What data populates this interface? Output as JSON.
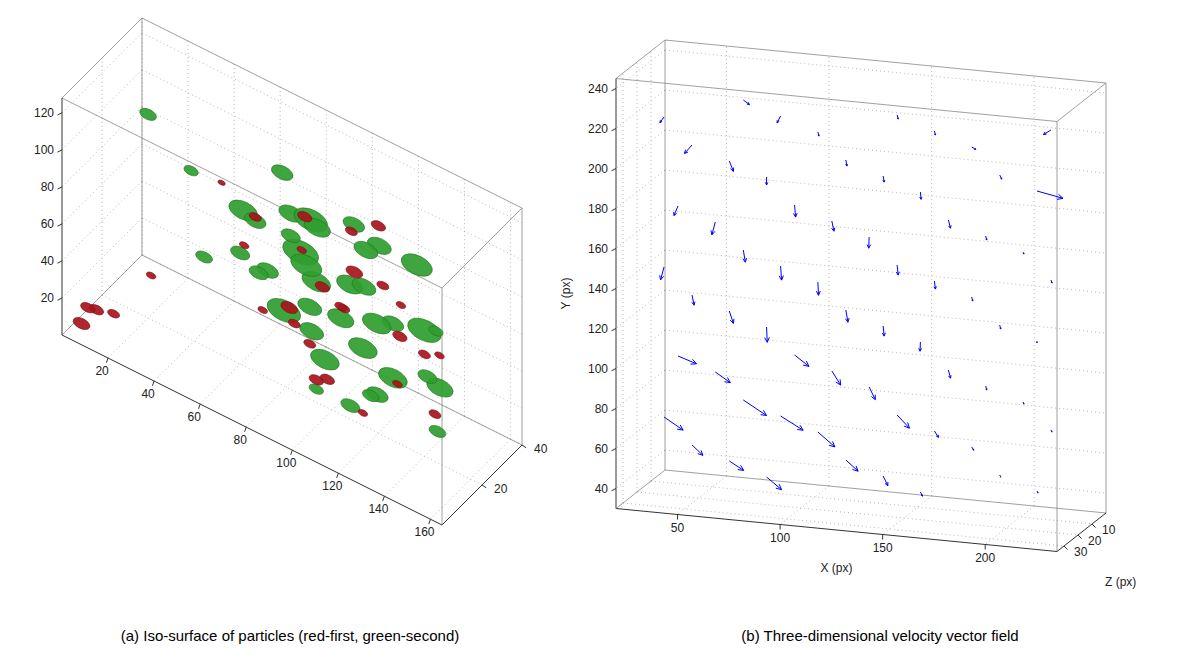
{
  "chart_data": [
    {
      "type": "isosurface",
      "title": "(a) Iso-surface of particles (red-first, green-second)",
      "xlim": [
        0,
        165
      ],
      "xticks": [
        20,
        40,
        60,
        80,
        100,
        120,
        140,
        160
      ],
      "ylim": [
        0,
        40
      ],
      "yticks": [
        20,
        40
      ],
      "zlim": [
        0,
        128
      ],
      "zticks": [
        20,
        40,
        60,
        80,
        100,
        120
      ],
      "grid": true,
      "series": [
        {
          "color": "#a8141c",
          "x": [
            95,
            110,
            120,
            85,
            100,
            115,
            90,
            105,
            125,
            75,
            95,
            110,
            130,
            80,
            100,
            140,
            150,
            5,
            8,
            12,
            6,
            60,
            45,
            30,
            70,
            120,
            135,
            85,
            115,
            155
          ],
          "y": [
            12,
            18,
            8,
            22,
            15,
            28,
            10,
            20,
            25,
            14,
            30,
            6,
            18,
            24,
            12,
            20,
            16,
            4,
            8,
            12,
            6,
            22,
            28,
            10,
            16,
            20,
            14,
            26,
            18,
            8
          ],
          "z": [
            110,
            105,
            100,
            75,
            72,
            68,
            60,
            58,
            50,
            45,
            42,
            38,
            35,
            30,
            25,
            55,
            65,
            5,
            10,
            6,
            12,
            62,
            80,
            40,
            90,
            112,
            85,
            20,
            10,
            45
          ],
          "size": [
            6,
            5,
            7,
            4,
            6,
            5,
            7,
            5,
            6,
            4,
            5,
            6,
            4,
            5,
            6,
            5,
            4,
            7,
            6,
            5,
            6,
            4,
            3,
            4,
            5,
            6,
            4,
            5,
            4,
            5
          ]
        },
        {
          "color": "#2f9e2f",
          "x": [
            70,
            82,
            95,
            105,
            118,
            128,
            88,
            100,
            112,
            75,
            92,
            108,
            122,
            135,
            60,
            80,
            98,
            115,
            130,
            145,
            85,
            102,
            120,
            70,
            90,
            110,
            128,
            140,
            65,
            150,
            55,
            100,
            115,
            125,
            80,
            30,
            40,
            150,
            158,
            20
          ],
          "y": [
            10,
            20,
            15,
            25,
            8,
            30,
            18,
            12,
            22,
            28,
            5,
            15,
            25,
            10,
            20,
            30,
            12,
            18,
            8,
            22,
            26,
            14,
            6,
            16,
            24,
            32,
            10,
            20,
            28,
            15,
            35,
            12,
            22,
            8,
            18,
            30,
            25,
            10,
            5,
            20
          ],
          "z": [
            100,
            95,
            105,
            98,
            92,
            85,
            80,
            78,
            72,
            70,
            65,
            60,
            55,
            50,
            60,
            55,
            50,
            45,
            40,
            38,
            40,
            35,
            30,
            88,
            88,
            82,
            75,
            68,
            45,
            25,
            30,
            20,
            15,
            115,
            118,
            75,
            40,
            60,
            95,
            110
          ],
          "size": [
            12,
            10,
            14,
            9,
            11,
            13,
            15,
            12,
            10,
            8,
            14,
            11,
            9,
            12,
            8,
            13,
            10,
            12,
            9,
            11,
            10,
            12,
            8,
            9,
            11,
            10,
            12,
            14,
            9,
            7,
            8,
            6,
            7,
            10,
            9,
            6,
            7,
            8,
            6,
            7
          ]
        }
      ]
    },
    {
      "type": "quiver",
      "title": "(b) Three-dimensional velocity vector field",
      "xlabel": "X (px)",
      "ylabel": "Y (px)",
      "zlabel": "Z (px)",
      "xlim": [
        20,
        235
      ],
      "xticks": [
        50,
        100,
        150,
        200
      ],
      "ylim": [
        30,
        245
      ],
      "yticks": [
        40,
        60,
        80,
        100,
        120,
        140,
        160,
        180,
        200,
        220,
        240
      ],
      "zlim": [
        0,
        35
      ],
      "zticks": [
        10,
        20,
        30
      ],
      "grid": true,
      "series": [
        {
          "color": "#0000ff",
          "x": [
            40,
            65,
            90,
            115,
            140,
            165,
            190,
            215,
            40,
            65,
            90,
            115,
            140,
            165,
            190,
            215,
            40,
            65,
            90,
            115,
            140,
            165,
            190,
            215,
            40,
            65,
            90,
            115,
            140,
            165,
            190,
            215,
            40,
            65,
            90,
            115,
            140,
            165,
            190,
            215,
            40,
            65,
            90,
            115,
            140,
            165,
            190,
            215,
            40,
            65,
            90,
            115,
            140,
            165,
            190,
            215,
            40,
            65,
            90,
            115,
            140,
            165,
            190,
            215
          ],
          "y": [
            50,
            50,
            50,
            50,
            50,
            50,
            50,
            50,
            75,
            75,
            75,
            75,
            75,
            75,
            75,
            75,
            100,
            100,
            100,
            100,
            100,
            100,
            100,
            100,
            125,
            125,
            125,
            125,
            125,
            125,
            125,
            125,
            150,
            150,
            150,
            150,
            150,
            150,
            150,
            150,
            175,
            175,
            175,
            175,
            175,
            175,
            175,
            175,
            200,
            200,
            200,
            200,
            200,
            200,
            200,
            200,
            225,
            225,
            225,
            225,
            225,
            225,
            225,
            225
          ],
          "z": [
            10,
            20,
            30,
            10,
            20,
            30,
            10,
            20,
            30,
            10,
            20,
            30,
            10,
            20,
            30,
            10,
            20,
            30,
            10,
            20,
            30,
            10,
            20,
            30,
            10,
            20,
            30,
            10,
            20,
            30,
            10,
            20,
            30,
            10,
            20,
            30,
            10,
            20,
            30,
            10,
            20,
            30,
            10,
            20,
            30,
            10,
            20,
            30,
            10,
            20,
            30,
            10,
            20,
            30,
            10,
            20,
            30,
            10,
            20,
            30,
            10,
            20,
            30,
            10
          ],
          "u": [
            6,
            7,
            8,
            6,
            3,
            1,
            0.5,
            0.5,
            10,
            12,
            11,
            9,
            6,
            2,
            1,
            0.5,
            9,
            8,
            7,
            5,
            3,
            1,
            0.5,
            0.5,
            1,
            2,
            1,
            1,
            0.5,
            0.5,
            0.5,
            0,
            -1,
            1,
            0.5,
            1,
            0.5,
            0.5,
            0.5,
            0.5,
            -2,
            -1,
            0.5,
            1,
            0.5,
            1,
            0.5,
            0.5,
            -3,
            2,
            0,
            0.5,
            0.5,
            1,
            1,
            12,
            -2,
            3,
            -1,
            0.5,
            0.5,
            0.5,
            2,
            -3
          ],
          "v": [
            -4,
            -4,
            -5,
            -5,
            -4,
            -2,
            -1,
            -1,
            -5,
            -6,
            -6,
            -6,
            -6,
            -3,
            -1.5,
            -1,
            -3,
            -4,
            -5,
            -6,
            -6,
            -4,
            -2,
            -1,
            -5,
            -6,
            -7,
            -6,
            -5,
            -4,
            -2,
            -1,
            -6,
            -6,
            -7,
            -6,
            -5,
            -4,
            -2,
            -1.5,
            -5,
            -6,
            -6,
            -5,
            -5,
            -4,
            -2,
            -1,
            -4,
            -5,
            -4,
            -3,
            -3,
            -3,
            -2,
            -3,
            -3,
            -2,
            -3,
            -2,
            -2,
            -2,
            -1,
            -2
          ],
          "w": [
            1,
            0,
            1,
            0,
            1,
            0,
            0,
            0,
            1,
            1,
            0,
            1,
            0,
            0,
            0,
            0,
            0,
            1,
            0,
            1,
            0,
            0,
            0,
            0,
            0,
            0,
            1,
            0,
            0,
            1,
            0,
            0,
            1,
            0,
            0,
            1,
            0,
            0,
            0,
            0,
            0,
            1,
            0,
            0,
            1,
            0,
            0,
            0,
            1,
            0,
            0,
            0,
            0,
            1,
            0,
            -1,
            0,
            0,
            1,
            0,
            0,
            0,
            0,
            1
          ]
        }
      ]
    }
  ]
}
